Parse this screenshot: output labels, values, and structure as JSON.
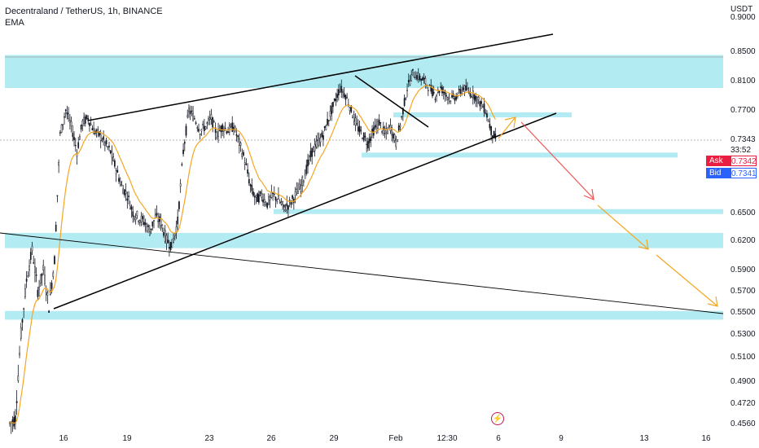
{
  "header": {
    "symbol": "Decentraland / TetherUS, 1h, BINANCE",
    "indicator": "EMA"
  },
  "currency_label": "USDT",
  "countdown": "33:52",
  "ask": {
    "label": "Ask",
    "value": "0.7342"
  },
  "bid": {
    "label": "Bid",
    "value": "0.7341"
  },
  "last_price_label": "0.7343",
  "colors": {
    "zone": "#b2ebf2",
    "ema": "#f5a623",
    "candle": "#131722",
    "trend": "#000000",
    "arrow_red": "#ef5350",
    "arrow_orange": "#f5a623"
  },
  "icons": {
    "replay": "lightning-icon"
  },
  "chart_data": {
    "type": "candlestick",
    "title": "Decentraland / TetherUS, 1h, BINANCE",
    "y_ticks": [
      "0.9000",
      "0.8500",
      "0.8100",
      "0.7700",
      "0.7343",
      "0.6500",
      "0.6200",
      "0.5900",
      "0.5700",
      "0.5500",
      "0.5300",
      "0.5100",
      "0.4900",
      "0.4720",
      "0.4560"
    ],
    "x_ticks": [
      "16",
      "19",
      "23",
      "26",
      "29",
      "Feb",
      "12:30",
      "6",
      "9",
      "13",
      "16"
    ],
    "price_series": [
      0.456,
      0.46,
      0.53,
      0.58,
      0.61,
      0.57,
      0.59,
      0.555,
      0.6,
      0.74,
      0.77,
      0.75,
      0.72,
      0.755,
      0.76,
      0.745,
      0.74,
      0.73,
      0.72,
      0.7,
      0.68,
      0.67,
      0.65,
      0.645,
      0.64,
      0.63,
      0.645,
      0.64,
      0.62,
      0.615,
      0.64,
      0.72,
      0.77,
      0.76,
      0.745,
      0.75,
      0.76,
      0.74,
      0.75,
      0.745,
      0.75,
      0.73,
      0.71,
      0.68,
      0.665,
      0.67,
      0.66,
      0.67,
      0.665,
      0.655,
      0.66,
      0.67,
      0.68,
      0.7,
      0.72,
      0.73,
      0.74,
      0.76,
      0.78,
      0.8,
      0.79,
      0.77,
      0.75,
      0.74,
      0.73,
      0.745,
      0.755,
      0.74,
      0.75,
      0.73,
      0.76,
      0.8,
      0.82,
      0.815,
      0.81,
      0.8,
      0.79,
      0.8,
      0.79,
      0.785,
      0.79,
      0.8,
      0.795,
      0.79,
      0.78,
      0.77,
      0.745,
      0.732
    ],
    "zones": [
      {
        "from": 0.8,
        "to": 0.845
      },
      {
        "from": 0.764,
        "to": 0.767
      },
      {
        "from": 0.716,
        "to": 0.719
      },
      {
        "from": 0.651,
        "to": 0.654
      },
      {
        "from": 0.612,
        "to": 0.628
      },
      {
        "from": 0.543,
        "to": 0.551
      }
    ],
    "annotations": [
      "rising wedge trendlines",
      "descending long trendline",
      "projected red arrow down",
      "projected orange arrows down",
      "orange up arrow"
    ]
  }
}
